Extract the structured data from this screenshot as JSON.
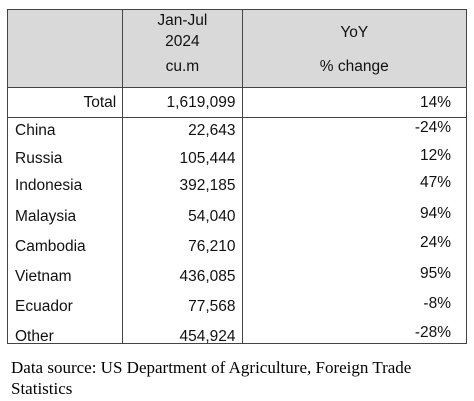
{
  "table": {
    "header": {
      "volume_line1": "Jan-Jul",
      "volume_line2": "2024",
      "volume_unit": "cu.m",
      "yoy_line1": "YoY",
      "yoy_unit": "% change"
    },
    "total": {
      "label": "Total",
      "volume": "1,619,099",
      "yoy": "14%"
    },
    "rows": [
      {
        "country": "China",
        "volume": "22,643",
        "yoy": "-24%"
      },
      {
        "country": "Russia",
        "volume": "105,444",
        "yoy": "12%"
      },
      {
        "country": "Indonesia",
        "volume": "392,185",
        "yoy": "47%"
      },
      {
        "country": "Malaysia",
        "volume": "54,040",
        "yoy": "94%"
      },
      {
        "country": "Cambodia",
        "volume": "76,210",
        "yoy": "24%"
      },
      {
        "country": "Vietnam",
        "volume": "436,085",
        "yoy": "95%"
      },
      {
        "country": "Ecuador",
        "volume": "77,568",
        "yoy": "-8%"
      },
      {
        "country": "Other",
        "volume": "454,924",
        "yoy": "-28%"
      }
    ]
  },
  "source": "Data source: US Department of Agriculture, Foreign Trade Statistics"
}
